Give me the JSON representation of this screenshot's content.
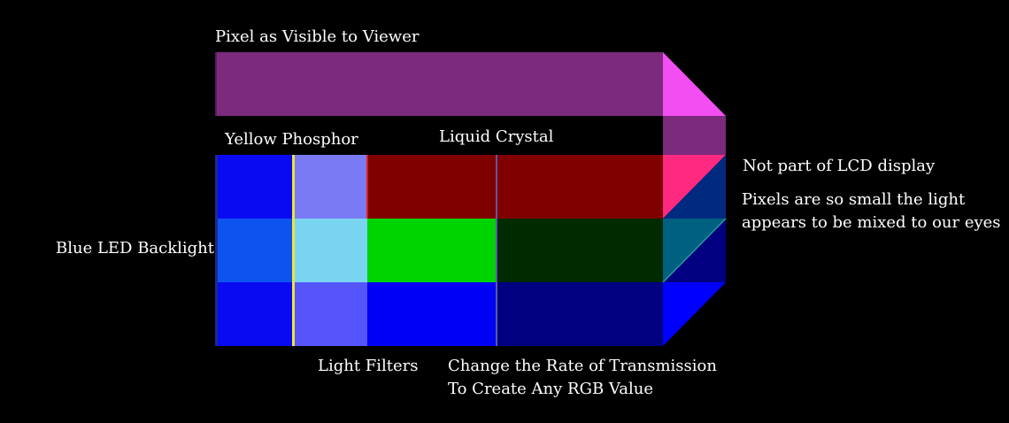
{
  "labels": {
    "pixel_visible": "Pixel as Visible to Viewer",
    "yellow_phosphor": "Yellow Phosphor",
    "liquid_crystal": "Liquid Crystal",
    "not_part": "Not part of LCD display",
    "pixels_small_line1": "Pixels are so small the light",
    "pixels_small_line2": "appears to be mixed to our eyes",
    "blue_led": "Blue LED Backlight",
    "light_filters": "Light Filters",
    "change_rate_line1": "Change the Rate of Transmission",
    "change_rate_line2": "To Create Any RGB Value"
  },
  "colors": {
    "background": "#000000",
    "viewer_pixel": "#7b2a7c",
    "viewer_pixel_bevel": "#f24ef2",
    "led_blue": "#0a0af2",
    "led_blue_mid": "#0d53f0",
    "phosphor_line": "#f0e436",
    "filter_top": "#7a7af4",
    "filter_mid": "#79d4f2",
    "filter_bottom": "#5555fb",
    "red_full": "#800000",
    "green_full": "#00d400",
    "green_dim": "#002a00",
    "blue_full": "#0000f5",
    "blue_dim": "#000080",
    "side_red": "#ff2a7f",
    "side_navy": "#002a80",
    "side_teal": "#006080",
    "side_navy2": "#000080",
    "side_blue": "#0000ff"
  }
}
